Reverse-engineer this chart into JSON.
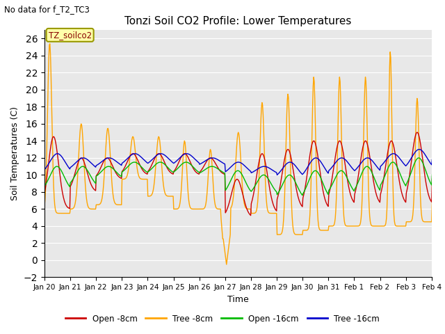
{
  "title": "Tonzi Soil CO2 Profile: Lower Temperatures",
  "subtitle": "No data for f_T2_TC3",
  "ylabel": "Soil Temperatures (C)",
  "xlabel": "Time",
  "annotation_label": "TZ_soilco2",
  "ylim": [
    -2,
    27
  ],
  "yticks": [
    -2,
    0,
    2,
    4,
    6,
    8,
    10,
    12,
    14,
    16,
    18,
    20,
    22,
    24,
    26
  ],
  "bg_color": "#e8e8e8",
  "legend": [
    "Open -8cm",
    "Tree -8cm",
    "Open -16cm",
    "Tree -16cm"
  ],
  "legend_colors": [
    "#cc0000",
    "#ffa500",
    "#00bb00",
    "#0000cc"
  ],
  "figsize": [
    6.4,
    4.8
  ],
  "dpi": 100
}
